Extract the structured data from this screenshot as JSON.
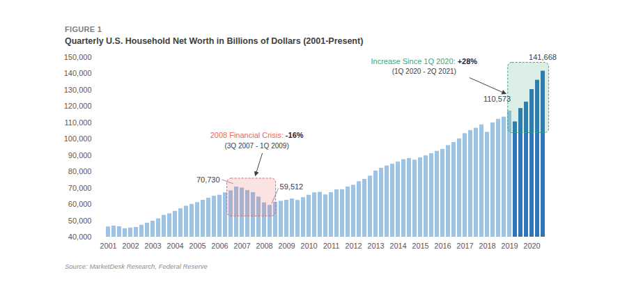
{
  "chart_data": {
    "type": "bar",
    "figure_label": "FIGURE 1",
    "title": "Quarterly U.S. Household Net Worth in Billions of Dollars (2001-Present)",
    "source": "Source: MarketDesk Research, Federal Reserve",
    "categories": [
      "2001",
      null,
      null,
      null,
      "2002",
      null,
      null,
      null,
      "2003",
      null,
      null,
      null,
      "2004",
      null,
      null,
      null,
      "2005",
      null,
      null,
      null,
      "2006",
      null,
      null,
      null,
      "2007",
      null,
      null,
      null,
      "2008",
      null,
      null,
      null,
      "2009",
      null,
      null,
      null,
      "2010",
      null,
      null,
      null,
      "2011",
      null,
      null,
      null,
      "2012",
      null,
      null,
      null,
      "2013",
      null,
      null,
      null,
      "2014",
      null,
      null,
      null,
      "2015",
      null,
      null,
      null,
      "2016",
      null,
      null,
      null,
      "2017",
      null,
      null,
      null,
      "2018",
      null,
      null,
      null,
      "2019",
      null,
      null,
      null,
      "2020",
      null,
      null
    ],
    "values": [
      46300,
      46800,
      46400,
      45200,
      45600,
      46000,
      47300,
      48600,
      49800,
      51200,
      53400,
      54300,
      55800,
      57400,
      59000,
      60100,
      61200,
      62600,
      63900,
      65100,
      65700,
      67200,
      68400,
      70730,
      70100,
      68600,
      67300,
      64600,
      61000,
      59512,
      61300,
      62000,
      62600,
      63400,
      62500,
      64200,
      65700,
      67200,
      67500,
      65900,
      67300,
      69000,
      69100,
      70700,
      71800,
      74000,
      75400,
      77400,
      80500,
      82200,
      83600,
      84700,
      86000,
      87500,
      88200,
      87200,
      88600,
      89800,
      91200,
      92600,
      93800,
      96100,
      98000,
      100200,
      103400,
      105300,
      106700,
      108800,
      104200,
      110000,
      112200,
      113500,
      117200,
      110573,
      118800,
      122700,
      130400,
      136100,
      141668
    ],
    "value_labels": [
      null,
      null,
      null,
      null,
      null,
      null,
      null,
      null,
      null,
      null,
      null,
      null,
      null,
      null,
      null,
      null,
      null,
      null,
      null,
      null,
      null,
      null,
      null,
      "70,730",
      null,
      null,
      null,
      null,
      null,
      "59,512",
      null,
      null,
      null,
      null,
      null,
      null,
      null,
      null,
      null,
      null,
      null,
      null,
      null,
      null,
      null,
      null,
      null,
      null,
      null,
      null,
      null,
      null,
      null,
      null,
      null,
      null,
      null,
      null,
      null,
      null,
      null,
      null,
      null,
      null,
      null,
      null,
      null,
      null,
      null,
      null,
      null,
      null,
      null,
      "110,573",
      null,
      null,
      null,
      null,
      "141,668"
    ],
    "colors": [
      "#9dc3e6",
      "#9dc3e6",
      "#9dc3e6",
      "#9dc3e6",
      "#9dc3e6",
      "#9dc3e6",
      "#9dc3e6",
      "#9dc3e6",
      "#9dc3e6",
      "#9dc3e6",
      "#9dc3e6",
      "#9dc3e6",
      "#9dc3e6",
      "#9dc3e6",
      "#9dc3e6",
      "#9dc3e6",
      "#9dc3e6",
      "#9dc3e6",
      "#9dc3e6",
      "#9dc3e6",
      "#9dc3e6",
      "#9dc3e6",
      "#9dc3e6",
      "#9dc3e6",
      "#9dc3e6",
      "#9dc3e6",
      "#9dc3e6",
      "#9dc3e6",
      "#9dc3e6",
      "#9dc3e6",
      "#9dc3e6",
      "#9dc3e6",
      "#9dc3e6",
      "#9dc3e6",
      "#9dc3e6",
      "#9dc3e6",
      "#9dc3e6",
      "#9dc3e6",
      "#9dc3e6",
      "#9dc3e6",
      "#9dc3e6",
      "#9dc3e6",
      "#9dc3e6",
      "#9dc3e6",
      "#9dc3e6",
      "#9dc3e6",
      "#9dc3e6",
      "#9dc3e6",
      "#9dc3e6",
      "#9dc3e6",
      "#9dc3e6",
      "#9dc3e6",
      "#9dc3e6",
      "#9dc3e6",
      "#9dc3e6",
      "#9dc3e6",
      "#9dc3e6",
      "#9dc3e6",
      "#9dc3e6",
      "#9dc3e6",
      "#9dc3e6",
      "#9dc3e6",
      "#9dc3e6",
      "#9dc3e6",
      "#9dc3e6",
      "#9dc3e6",
      "#9dc3e6",
      "#9dc3e6",
      "#9dc3e6",
      "#9dc3e6",
      "#9dc3e6",
      "#9dc3e6",
      "#9dc3e6",
      "#2e75b6",
      "#2e75b6",
      "#2e75b6",
      "#2e75b6",
      "#2e75b6",
      "#2e75b6"
    ],
    "ylim": [
      40000,
      150000
    ],
    "yticks": [
      {
        "value": 40000,
        "label": "40,000"
      },
      {
        "value": 50000,
        "label": "50,000"
      },
      {
        "value": 60000,
        "label": "60,000"
      },
      {
        "value": 70000,
        "label": "70,000"
      },
      {
        "value": 80000,
        "label": "80,000"
      },
      {
        "value": 90000,
        "label": "90,000"
      },
      {
        "value": 100000,
        "label": "100,000"
      },
      {
        "value": 110000,
        "label": "110,000"
      },
      {
        "value": 120000,
        "label": "120,000"
      },
      {
        "value": 130000,
        "label": "130,000"
      },
      {
        "value": 140000,
        "label": "140,000"
      },
      {
        "value": 150000,
        "label": "150,000"
      }
    ],
    "grid": false,
    "annotations": [
      {
        "text": "2008 Financial Crisis:",
        "change": "-16%",
        "period": "(3Q 2007 - 1Q 2009)",
        "color": "#e8646b"
      },
      {
        "text": "Increase Since 1Q 2020:",
        "change": "+28%",
        "period": "(1Q 2020 - 2Q 2021)",
        "color": "#3aa57a"
      }
    ]
  }
}
